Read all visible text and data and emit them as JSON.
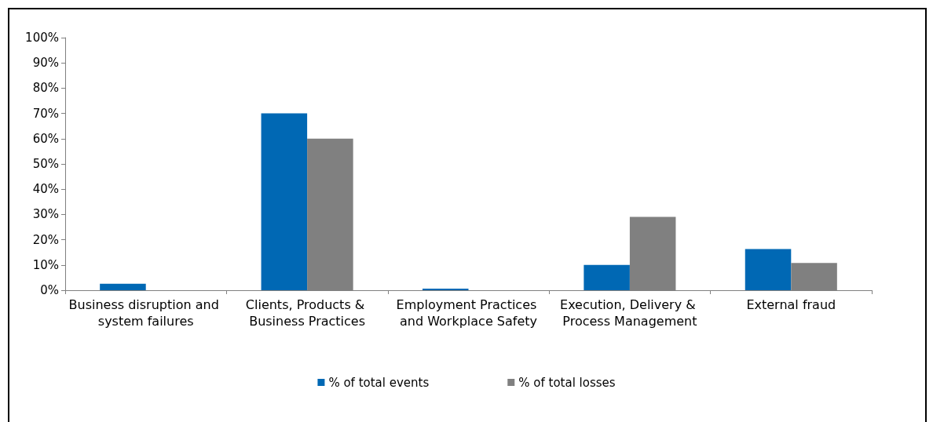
{
  "chart_data": {
    "type": "bar",
    "categories": [
      "Business disruption and system failures",
      "Clients, Products & Business Practices",
      "Employment Practices and Workplace Safety",
      "Execution, Delivery & Process Management",
      "External fraud"
    ],
    "series": [
      {
        "name": "% of total events",
        "color": "#0068b4",
        "values": [
          2.6,
          70,
          0.6,
          10,
          16.3
        ]
      },
      {
        "name": "% of total losses",
        "color": "#808080",
        "values": [
          0,
          60,
          0,
          29,
          10.8
        ]
      }
    ],
    "ylim": [
      0,
      100
    ],
    "yticks": [
      {
        "value": 0,
        "label": "0%"
      },
      {
        "value": 10,
        "label": "10%"
      },
      {
        "value": 20,
        "label": "20%"
      },
      {
        "value": 30,
        "label": "30%"
      },
      {
        "value": 40,
        "label": "40%"
      },
      {
        "value": 50,
        "label": "50%"
      },
      {
        "value": 60,
        "label": "60%"
      },
      {
        "value": 70,
        "label": "70%"
      },
      {
        "value": 80,
        "label": "80%"
      },
      {
        "value": 90,
        "label": "90%"
      },
      {
        "value": 100,
        "label": "100%"
      }
    ],
    "grid": false,
    "legend": "bottom"
  }
}
